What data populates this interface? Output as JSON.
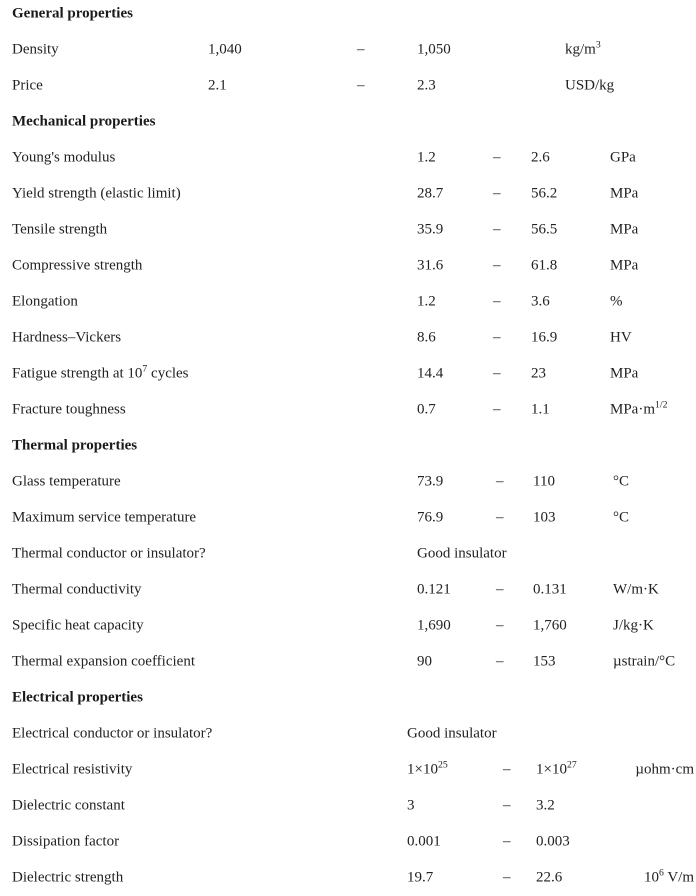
{
  "colors": {
    "text": "#222222",
    "heading_text": "#1a1a1a",
    "background": "#ffffff"
  },
  "table": {
    "sections": [
      {
        "title": "General properties",
        "rows": [
          {
            "label": "Density",
            "min": "1,040",
            "dash": "–",
            "max": "1,050",
            "unit": "kg/m^{3}"
          },
          {
            "label": "Price",
            "min": "2.1",
            "dash": "–",
            "max": "2.3",
            "unit": "USD/kg"
          }
        ]
      },
      {
        "title": "Mechanical properties",
        "rows": [
          {
            "label": "Young's modulus",
            "min": "1.2",
            "dash": "–",
            "max": "2.6",
            "unit": "GPa"
          },
          {
            "label": "Yield strength (elastic limit)",
            "min": "28.7",
            "dash": "–",
            "max": "56.2",
            "unit": "MPa"
          },
          {
            "label": "Tensile strength",
            "min": "35.9",
            "dash": "–",
            "max": "56.5",
            "unit": "MPa"
          },
          {
            "label": "Compressive strength",
            "min": "31.6",
            "dash": "–",
            "max": "61.8",
            "unit": "MPa"
          },
          {
            "label": "Elongation",
            "min": "1.2",
            "dash": "–",
            "max": "3.6",
            "unit": "%"
          },
          {
            "label": "Hardness–Vickers",
            "min": "8.6",
            "dash": "–",
            "max": "16.9",
            "unit": "HV"
          },
          {
            "label": "Fatigue strength at 10^{7} cycles",
            "min": "14.4",
            "dash": "–",
            "max": "23",
            "unit": "MPa"
          },
          {
            "label": "Fracture toughness",
            "min": "0.7",
            "dash": "–",
            "max": "1.1",
            "unit": "MPa·m^{1/2}"
          }
        ]
      },
      {
        "title": "Thermal properties",
        "rows": [
          {
            "label": "Glass temperature",
            "min": "73.9",
            "dash": "–",
            "max": "110",
            "unit": "°C"
          },
          {
            "label": "Maximum service temperature",
            "min": "76.9",
            "dash": "–",
            "max": "103",
            "unit": "°C"
          },
          {
            "label": "Thermal conductor or insulator?",
            "min": "Good insulator",
            "dash": "",
            "max": "",
            "unit": ""
          },
          {
            "label": "Thermal conductivity",
            "min": "0.121",
            "dash": "–",
            "max": "0.131",
            "unit": "W/m·K"
          },
          {
            "label": "Specific heat capacity",
            "min": "1,690",
            "dash": "–",
            "max": "1,760",
            "unit": "J/kg·K"
          },
          {
            "label": "Thermal expansion coefficient",
            "min": "90",
            "dash": "–",
            "max": "153",
            "unit": "µstrain/°C"
          }
        ]
      },
      {
        "title": "Electrical properties",
        "rows": [
          {
            "label": "Electrical conductor or insulator?",
            "min": "Good insulator",
            "dash": "",
            "max": "",
            "unit": ""
          },
          {
            "label": "Electrical resistivity",
            "min": "1×10^{25}",
            "dash": "–",
            "max": "1×10^{27}",
            "unit": "µohm·cm"
          },
          {
            "label": "Dielectric constant",
            "min": "3",
            "dash": "–",
            "max": "3.2",
            "unit": ""
          },
          {
            "label": "Dissipation factor",
            "min": "0.001",
            "dash": "–",
            "max": "0.003",
            "unit": ""
          },
          {
            "label": "Dielectric strength",
            "min": "19.7",
            "dash": "–",
            "max": "22.6",
            "unit": "10^{6} V/m"
          }
        ]
      }
    ]
  }
}
